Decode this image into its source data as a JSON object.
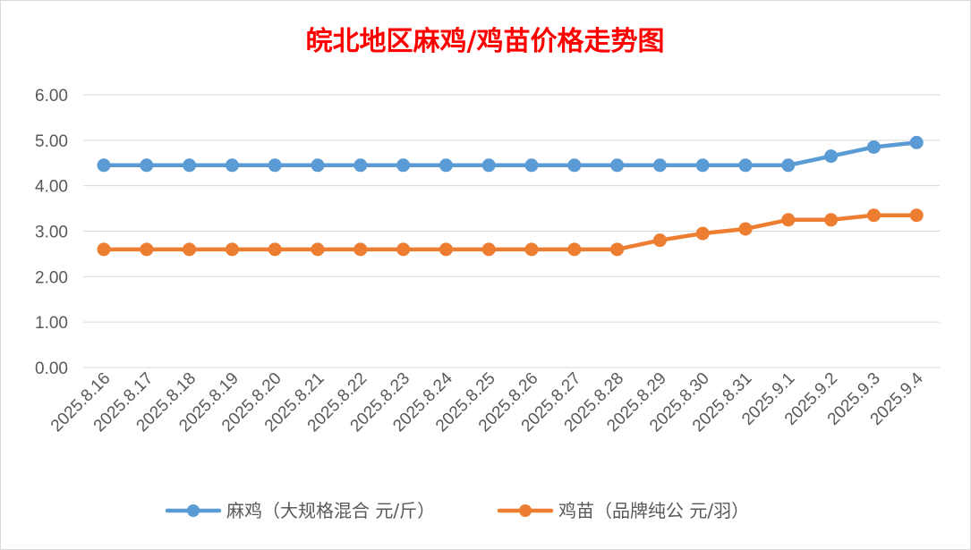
{
  "chart_data": {
    "type": "line",
    "title": "皖北地区麻鸡/鸡苗价格走势图",
    "xlabel": "",
    "ylabel": "",
    "categories": [
      "2025.8.16",
      "2025.8.17",
      "2025.8.18",
      "2025.8.19",
      "2025.8.20",
      "2025.8.21",
      "2025.8.22",
      "2025.8.23",
      "2025.8.24",
      "2025.8.25",
      "2025.8.26",
      "2025.8.27",
      "2025.8.28",
      "2025.8.29",
      "2025.8.30",
      "2025.8.31",
      "2025.9.1",
      "2025.9.2",
      "2025.9.3",
      "2025.9.4"
    ],
    "ylim": [
      0,
      6
    ],
    "yticks": [
      "0.00",
      "1.00",
      "2.00",
      "3.00",
      "4.00",
      "5.00",
      "6.00"
    ],
    "grid": true,
    "legend_position": "bottom",
    "series": [
      {
        "name": "麻鸡（大规格混合 元/斤）",
        "color": "#5b9bd5",
        "values": [
          4.45,
          4.45,
          4.45,
          4.45,
          4.45,
          4.45,
          4.45,
          4.45,
          4.45,
          4.45,
          4.45,
          4.45,
          4.45,
          4.45,
          4.45,
          4.45,
          4.45,
          4.65,
          4.85,
          4.95
        ]
      },
      {
        "name": "鸡苗（品牌纯公 元/羽）",
        "color": "#ed7d31",
        "values": [
          2.6,
          2.6,
          2.6,
          2.6,
          2.6,
          2.6,
          2.6,
          2.6,
          2.6,
          2.6,
          2.6,
          2.6,
          2.6,
          2.8,
          2.95,
          3.05,
          3.25,
          3.25,
          3.35,
          3.35
        ]
      }
    ]
  }
}
